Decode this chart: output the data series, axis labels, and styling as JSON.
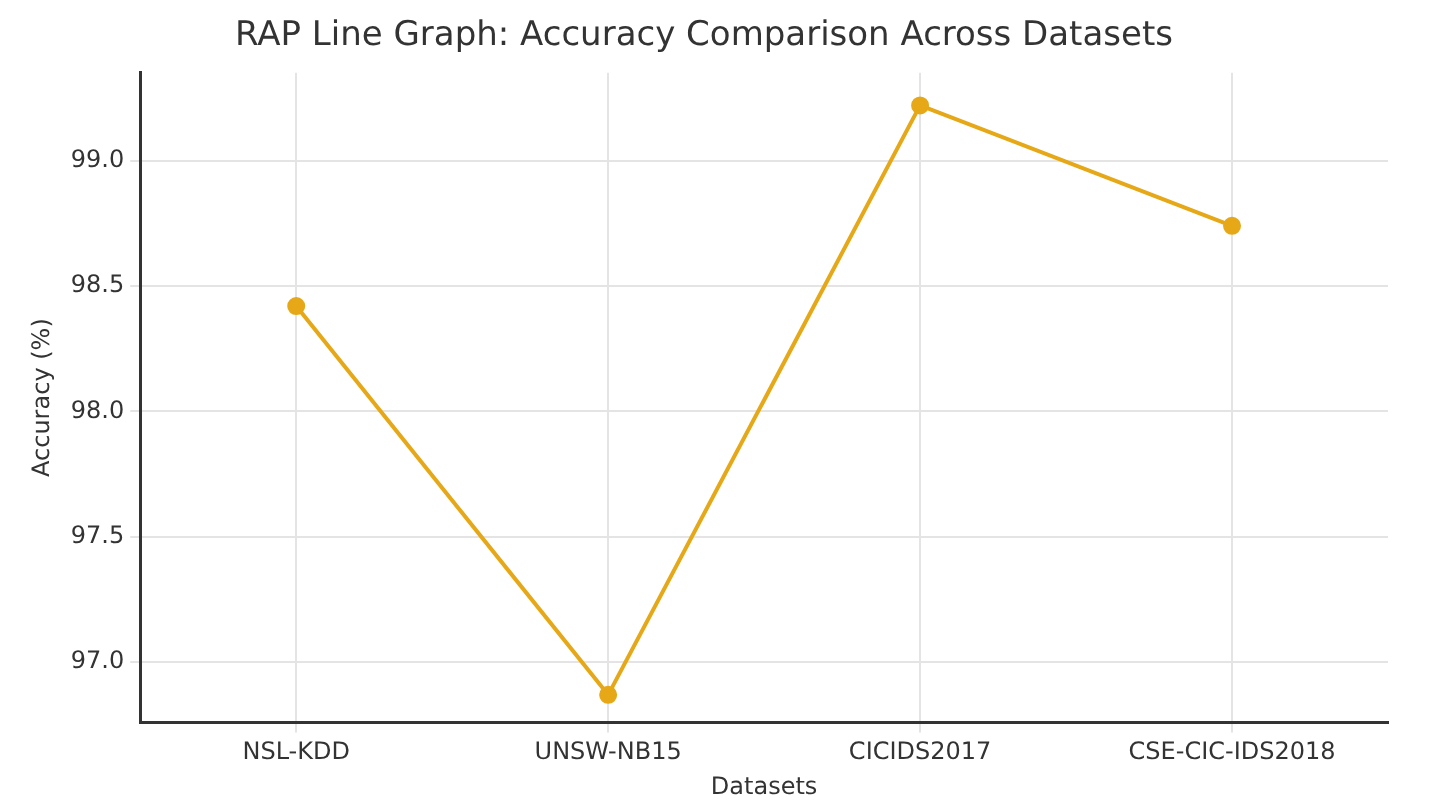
{
  "chart_data": {
    "type": "line",
    "title": "RAP Line Graph: Accuracy Comparison Across Datasets",
    "xlabel": "Datasets",
    "ylabel": "Accuracy (%)",
    "categories": [
      "NSL-KDD",
      "UNSW-NB15",
      "CICIDS2017",
      "CSE-CIC-IDS2018"
    ],
    "series": [
      {
        "color": "#e6a817",
        "values": [
          98.42,
          96.87,
          99.22,
          98.74
        ]
      }
    ],
    "ylim": [
      96.76,
      99.35
    ],
    "yticks": [
      {
        "value": 97,
        "label": "97.0"
      },
      97.5,
      {
        "value": 98,
        "label": "98.0"
      },
      98.5,
      {
        "value": 99,
        "label": "99.0"
      }
    ],
    "grid": true,
    "marker": "circle",
    "line_style": "solid"
  }
}
